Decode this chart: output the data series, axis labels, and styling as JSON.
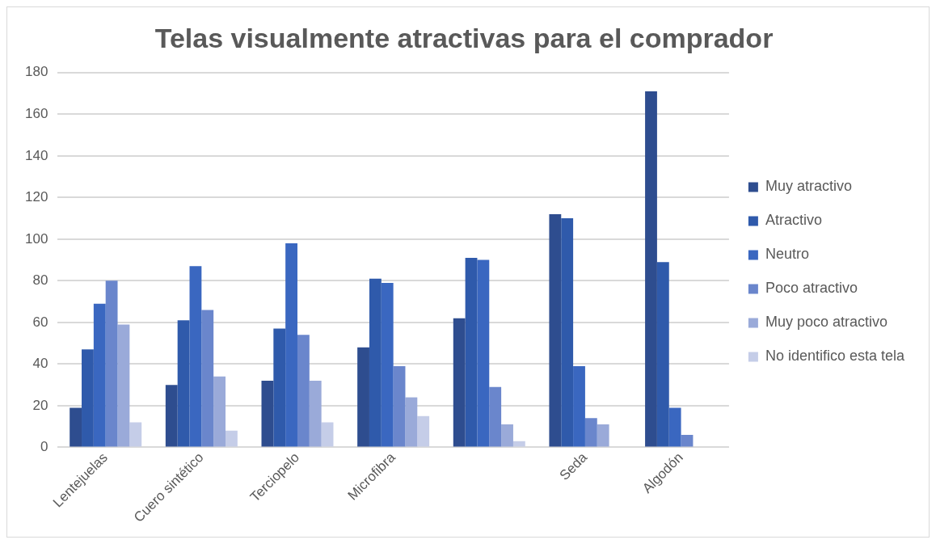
{
  "chart_data": {
    "type": "bar",
    "title": "Telas visualmente atractivas para el comprador",
    "categories": [
      "Lentejuelas",
      "Cuero sintético",
      "Terciopelo",
      "Microfibra",
      null,
      "Seda",
      "Algodón"
    ],
    "series": [
      {
        "name": "Muy atractivo",
        "color": "#2e4d8f",
        "values": [
          19,
          30,
          32,
          48,
          62,
          112,
          171
        ]
      },
      {
        "name": "Atractivo",
        "color": "#2f5aab",
        "values": [
          47,
          61,
          57,
          81,
          91,
          110,
          89
        ]
      },
      {
        "name": "Neutro",
        "color": "#3a67c0",
        "values": [
          69,
          87,
          98,
          79,
          90,
          39,
          19
        ]
      },
      {
        "name": "Poco atractivo",
        "color": "#6a86cc",
        "values": [
          80,
          66,
          54,
          39,
          29,
          14,
          6
        ]
      },
      {
        "name": "Muy poco atractivo",
        "color": "#9aaad9",
        "values": [
          59,
          34,
          32,
          24,
          11,
          11,
          0
        ]
      },
      {
        "name": "No identifico esta tela",
        "color": "#c5cde8",
        "values": [
          12,
          8,
          12,
          15,
          3,
          0,
          0
        ]
      }
    ],
    "ylim": [
      0,
      180
    ],
    "yticks": [
      0,
      20,
      40,
      60,
      80,
      100,
      120,
      140,
      160,
      180
    ],
    "grid": "y",
    "legend": "right"
  }
}
